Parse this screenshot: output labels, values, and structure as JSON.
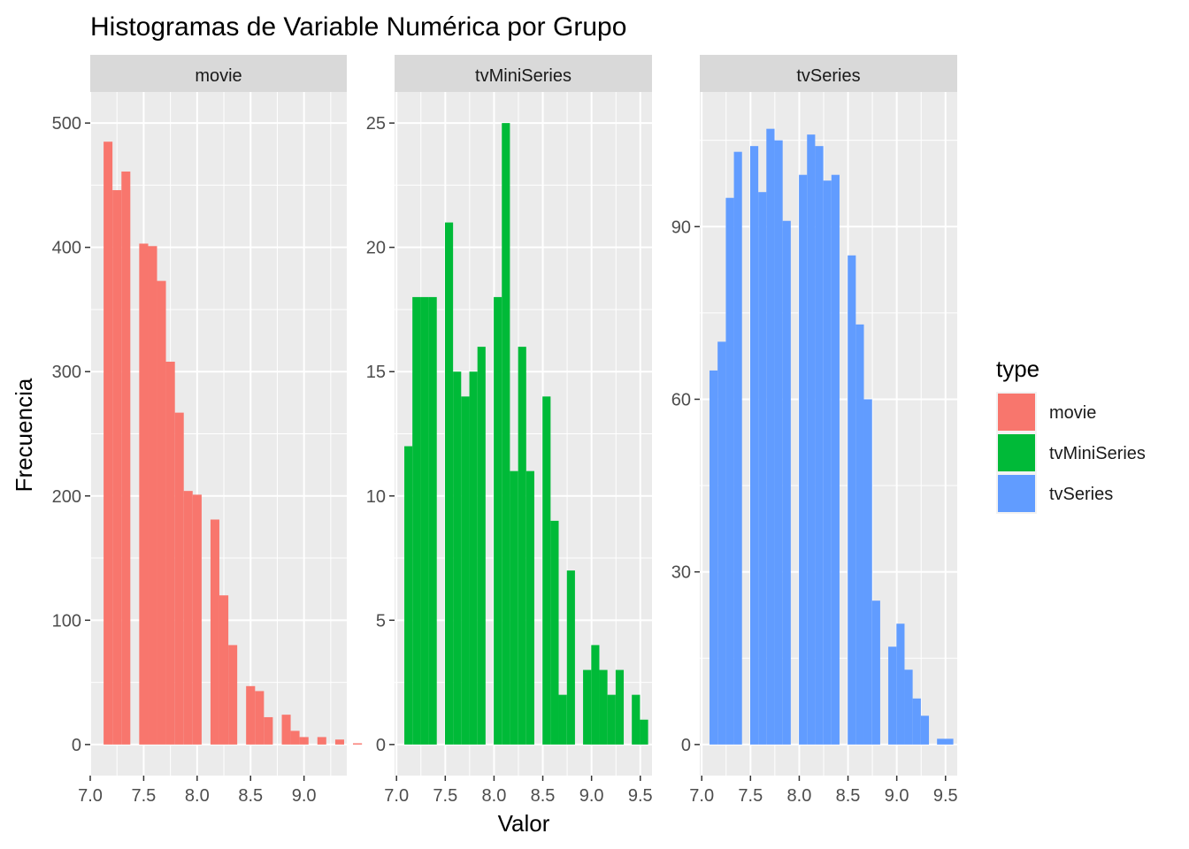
{
  "chart_data": {
    "type": "bar",
    "title": "Histogramas de Variable Numérica por Grupo",
    "xlabel": "Valor",
    "ylabel": "Frecuencia",
    "legend": {
      "title": "type",
      "placement": "right",
      "entries": [
        {
          "name": "movie",
          "color": "#F8766D"
        },
        {
          "name": "tvMiniSeries",
          "color": "#00BA38"
        },
        {
          "name": "tvSeries",
          "color": "#619CFF"
        }
      ]
    },
    "bin_width": 0.0833,
    "panels": [
      {
        "name": "movie",
        "color": "#F8766D",
        "xlim": [
          7.0,
          9.4
        ],
        "ylim": [
          -25,
          525
        ],
        "xticks": [
          7.0,
          7.5,
          8.0,
          8.5,
          9.0
        ],
        "xtick_labels": [
          "7.0",
          "7.5",
          "8.0",
          "8.5",
          "9.0"
        ],
        "yticks": [
          0,
          100,
          200,
          300,
          400,
          500
        ],
        "ytick_labels": [
          "0",
          "100",
          "200",
          "300",
          "400",
          "500"
        ],
        "bins": [
          {
            "start": 7.125,
            "end": 7.208,
            "count": 485
          },
          {
            "start": 7.208,
            "end": 7.292,
            "count": 446
          },
          {
            "start": 7.292,
            "end": 7.375,
            "count": 461
          },
          {
            "start": 7.458,
            "end": 7.542,
            "count": 403
          },
          {
            "start": 7.542,
            "end": 7.625,
            "count": 401
          },
          {
            "start": 7.625,
            "end": 7.708,
            "count": 373
          },
          {
            "start": 7.708,
            "end": 7.792,
            "count": 308
          },
          {
            "start": 7.792,
            "end": 7.875,
            "count": 267
          },
          {
            "start": 7.875,
            "end": 7.958,
            "count": 204
          },
          {
            "start": 7.958,
            "end": 8.042,
            "count": 201
          },
          {
            "start": 8.125,
            "end": 8.208,
            "count": 181
          },
          {
            "start": 8.208,
            "end": 8.292,
            "count": 120
          },
          {
            "start": 8.292,
            "end": 8.375,
            "count": 80
          },
          {
            "start": 8.458,
            "end": 8.542,
            "count": 47
          },
          {
            "start": 8.542,
            "end": 8.625,
            "count": 43
          },
          {
            "start": 8.625,
            "end": 8.708,
            "count": 22
          },
          {
            "start": 8.792,
            "end": 8.875,
            "count": 24
          },
          {
            "start": 8.875,
            "end": 8.958,
            "count": 11
          },
          {
            "start": 8.958,
            "end": 9.042,
            "count": 6
          },
          {
            "start": 9.125,
            "end": 9.208,
            "count": 6
          },
          {
            "start": 9.292,
            "end": 9.375,
            "count": 4
          },
          {
            "start": 9.458,
            "end": 9.542,
            "count": 1
          }
        ]
      },
      {
        "name": "tvMiniSeries",
        "color": "#00BA38",
        "xlim": [
          6.98,
          9.62
        ],
        "ylim": [
          -1.25,
          26.25
        ],
        "xticks": [
          7.0,
          7.5,
          8.0,
          8.5,
          9.0,
          9.5
        ],
        "xtick_labels": [
          "7.0",
          "7.5",
          "8.0",
          "8.5",
          "9.0",
          "9.5"
        ],
        "yticks": [
          0,
          5,
          10,
          15,
          20,
          25
        ],
        "ytick_labels": [
          "0",
          "5",
          "10",
          "15",
          "20",
          "25"
        ],
        "bins": [
          {
            "start": 7.08,
            "end": 7.163,
            "count": 12
          },
          {
            "start": 7.163,
            "end": 7.247,
            "count": 18
          },
          {
            "start": 7.247,
            "end": 7.33,
            "count": 18
          },
          {
            "start": 7.33,
            "end": 7.413,
            "count": 18
          },
          {
            "start": 7.497,
            "end": 7.58,
            "count": 21
          },
          {
            "start": 7.58,
            "end": 7.663,
            "count": 15
          },
          {
            "start": 7.663,
            "end": 7.747,
            "count": 14
          },
          {
            "start": 7.747,
            "end": 7.83,
            "count": 15
          },
          {
            "start": 7.83,
            "end": 7.913,
            "count": 16
          },
          {
            "start": 7.997,
            "end": 8.08,
            "count": 18
          },
          {
            "start": 8.08,
            "end": 8.163,
            "count": 25
          },
          {
            "start": 8.163,
            "end": 8.247,
            "count": 11
          },
          {
            "start": 8.247,
            "end": 8.33,
            "count": 16
          },
          {
            "start": 8.33,
            "end": 8.413,
            "count": 11
          },
          {
            "start": 8.497,
            "end": 8.58,
            "count": 14
          },
          {
            "start": 8.58,
            "end": 8.663,
            "count": 9
          },
          {
            "start": 8.663,
            "end": 8.747,
            "count": 2
          },
          {
            "start": 8.747,
            "end": 8.83,
            "count": 7
          },
          {
            "start": 8.913,
            "end": 8.997,
            "count": 3
          },
          {
            "start": 8.997,
            "end": 9.08,
            "count": 4
          },
          {
            "start": 9.08,
            "end": 9.163,
            "count": 3
          },
          {
            "start": 9.163,
            "end": 9.247,
            "count": 2
          },
          {
            "start": 9.247,
            "end": 9.33,
            "count": 3
          },
          {
            "start": 9.413,
            "end": 9.497,
            "count": 2
          },
          {
            "start": 9.497,
            "end": 9.58,
            "count": 1
          }
        ]
      },
      {
        "name": "tvSeries",
        "color": "#619CFF",
        "xlim": [
          6.98,
          9.62
        ],
        "ylim": [
          -5.4,
          113.4
        ],
        "xticks": [
          7.0,
          7.5,
          8.0,
          8.5,
          9.0,
          9.5
        ],
        "xtick_labels": [
          "7.0",
          "7.5",
          "8.0",
          "8.5",
          "9.0",
          "9.5"
        ],
        "yticks": [
          0,
          30,
          60,
          90
        ],
        "ytick_labels": [
          "0",
          "30",
          "60",
          "90"
        ],
        "bins": [
          {
            "start": 7.08,
            "end": 7.163,
            "count": 65
          },
          {
            "start": 7.163,
            "end": 7.247,
            "count": 70
          },
          {
            "start": 7.247,
            "end": 7.33,
            "count": 95
          },
          {
            "start": 7.33,
            "end": 7.413,
            "count": 103
          },
          {
            "start": 7.497,
            "end": 7.58,
            "count": 104
          },
          {
            "start": 7.58,
            "end": 7.663,
            "count": 96
          },
          {
            "start": 7.663,
            "end": 7.747,
            "count": 107
          },
          {
            "start": 7.747,
            "end": 7.83,
            "count": 105
          },
          {
            "start": 7.83,
            "end": 7.913,
            "count": 91
          },
          {
            "start": 7.997,
            "end": 8.08,
            "count": 99
          },
          {
            "start": 8.08,
            "end": 8.163,
            "count": 106
          },
          {
            "start": 8.163,
            "end": 8.247,
            "count": 104
          },
          {
            "start": 8.247,
            "end": 8.33,
            "count": 98
          },
          {
            "start": 8.33,
            "end": 8.413,
            "count": 99
          },
          {
            "start": 8.497,
            "end": 8.58,
            "count": 85
          },
          {
            "start": 8.58,
            "end": 8.663,
            "count": 73
          },
          {
            "start": 8.663,
            "end": 8.747,
            "count": 60
          },
          {
            "start": 8.747,
            "end": 8.83,
            "count": 25
          },
          {
            "start": 8.913,
            "end": 8.997,
            "count": 17
          },
          {
            "start": 8.997,
            "end": 9.08,
            "count": 21
          },
          {
            "start": 9.08,
            "end": 9.163,
            "count": 13
          },
          {
            "start": 9.163,
            "end": 9.247,
            "count": 8
          },
          {
            "start": 9.247,
            "end": 9.33,
            "count": 5
          },
          {
            "start": 9.413,
            "end": 9.58,
            "count": 1
          }
        ]
      }
    ]
  }
}
